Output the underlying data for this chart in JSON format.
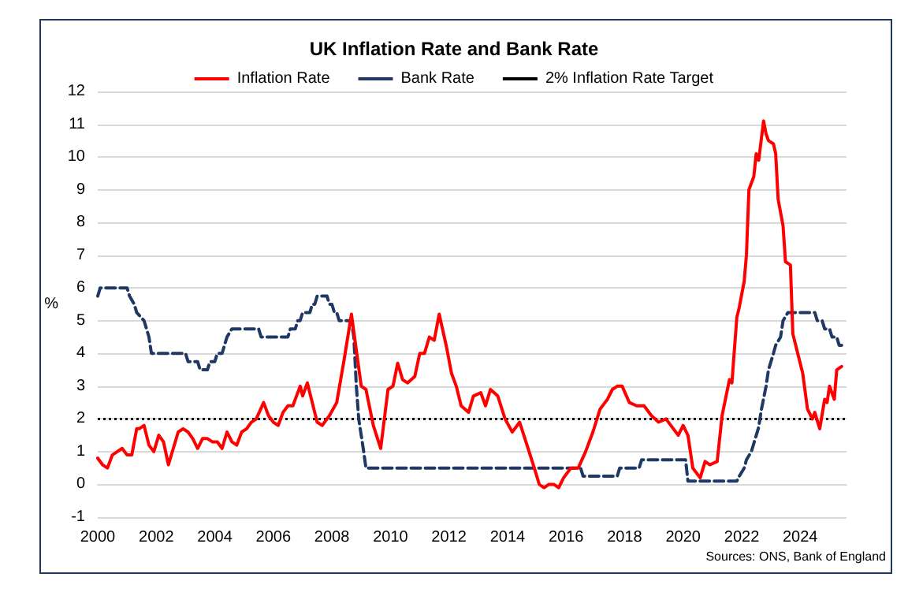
{
  "chart_data": {
    "type": "line",
    "title": "UK Inflation Rate and Bank Rate",
    "ylabel": "%",
    "annotations": [
      "Sources: ONS, Bank of England"
    ],
    "xlim": [
      "2000-01",
      "2025-08"
    ],
    "xticks": [
      "2000",
      "2002",
      "2004",
      "2006",
      "2008",
      "2010",
      "2012",
      "2014",
      "2016",
      "2018",
      "2020",
      "2022",
      "2024"
    ],
    "ylim": [
      -1,
      12
    ],
    "yticks": [
      -1,
      0,
      1,
      2,
      3,
      4,
      5,
      6,
      7,
      8,
      9,
      10,
      11,
      12
    ],
    "grid": "y",
    "legend": "top",
    "marker": "none",
    "ref_lines": [
      {
        "axis": "y",
        "value": 2,
        "label": "2% Inflation Rate Target",
        "color": "#000000",
        "line_style": "dotted"
      }
    ],
    "series": [
      {
        "name": "Inflation Rate",
        "color": "#ff0000",
        "line_style": "solid",
        "x": [
          "2000-01",
          "2000-03",
          "2000-05",
          "2000-07",
          "2000-09",
          "2000-11",
          "2001-01",
          "2001-03",
          "2001-05",
          "2001-06",
          "2001-08",
          "2001-10",
          "2001-12",
          "2002-02",
          "2002-04",
          "2002-06",
          "2002-08",
          "2002-10",
          "2002-12",
          "2003-02",
          "2003-04",
          "2003-06",
          "2003-08",
          "2003-10",
          "2003-12",
          "2004-02",
          "2004-04",
          "2004-06",
          "2004-08",
          "2004-10",
          "2004-12",
          "2005-02",
          "2005-04",
          "2005-06",
          "2005-09",
          "2005-11",
          "2006-01",
          "2006-03",
          "2006-05",
          "2006-07",
          "2006-09",
          "2006-12",
          "2007-01",
          "2007-03",
          "2007-05",
          "2007-07",
          "2007-09",
          "2007-12",
          "2008-03",
          "2008-06",
          "2008-09",
          "2008-11",
          "2009-01",
          "2009-03",
          "2009-06",
          "2009-09",
          "2009-12",
          "2010-02",
          "2010-04",
          "2010-06",
          "2010-08",
          "2010-11",
          "2011-01",
          "2011-03",
          "2011-05",
          "2011-07",
          "2011-09",
          "2011-12",
          "2012-02",
          "2012-04",
          "2012-06",
          "2012-09",
          "2012-11",
          "2013-02",
          "2013-04",
          "2013-06",
          "2013-09",
          "2013-12",
          "2014-03",
          "2014-06",
          "2014-09",
          "2014-12",
          "2015-02",
          "2015-04",
          "2015-06",
          "2015-08",
          "2015-10",
          "2015-12",
          "2016-03",
          "2016-06",
          "2016-09",
          "2016-12",
          "2017-03",
          "2017-06",
          "2017-08",
          "2017-10",
          "2017-12",
          "2018-03",
          "2018-06",
          "2018-09",
          "2018-12",
          "2019-03",
          "2019-06",
          "2019-09",
          "2019-11",
          "2020-01",
          "2020-03",
          "2020-05",
          "2020-08",
          "2020-10",
          "2020-12",
          "2021-03",
          "2021-05",
          "2021-08",
          "2021-09",
          "2021-11",
          "2021-12",
          "2022-02",
          "2022-03",
          "2022-04",
          "2022-06",
          "2022-07",
          "2022-08",
          "2022-10",
          "2022-11",
          "2022-12",
          "2023-02",
          "2023-03",
          "2023-04",
          "2023-06",
          "2023-07",
          "2023-09",
          "2023-10",
          "2023-12",
          "2024-02",
          "2024-04",
          "2024-06",
          "2024-07",
          "2024-09",
          "2024-11",
          "2024-12",
          "2025-01",
          "2025-03",
          "2025-04",
          "2025-06"
        ],
        "values": [
          0.8,
          0.6,
          0.5,
          0.9,
          1.0,
          1.1,
          0.9,
          0.9,
          1.7,
          1.7,
          1.8,
          1.2,
          1.0,
          1.5,
          1.3,
          0.6,
          1.1,
          1.6,
          1.7,
          1.6,
          1.4,
          1.1,
          1.4,
          1.4,
          1.3,
          1.3,
          1.1,
          1.6,
          1.3,
          1.2,
          1.6,
          1.7,
          1.9,
          2.0,
          2.5,
          2.1,
          1.9,
          1.8,
          2.2,
          2.4,
          2.4,
          3.0,
          2.7,
          3.1,
          2.5,
          1.9,
          1.8,
          2.1,
          2.5,
          3.8,
          5.2,
          4.1,
          3.0,
          2.9,
          1.8,
          1.1,
          2.9,
          3.0,
          3.7,
          3.2,
          3.1,
          3.3,
          4.0,
          4.0,
          4.5,
          4.4,
          5.2,
          4.2,
          3.4,
          3.0,
          2.4,
          2.2,
          2.7,
          2.8,
          2.4,
          2.9,
          2.7,
          2.0,
          1.6,
          1.9,
          1.2,
          0.5,
          0.0,
          -0.1,
          0.0,
          0.0,
          -0.1,
          0.2,
          0.5,
          0.5,
          1.0,
          1.6,
          2.3,
          2.6,
          2.9,
          3.0,
          3.0,
          2.5,
          2.4,
          2.4,
          2.1,
          1.9,
          2.0,
          1.7,
          1.5,
          1.8,
          1.5,
          0.5,
          0.2,
          0.7,
          0.6,
          0.7,
          2.1,
          3.2,
          3.1,
          5.1,
          5.4,
          6.2,
          7.0,
          9.0,
          9.4,
          10.1,
          9.9,
          11.1,
          10.7,
          10.5,
          10.4,
          10.1,
          8.7,
          7.9,
          6.8,
          6.7,
          4.6,
          4.0,
          3.4,
          2.3,
          2.0,
          2.2,
          1.7,
          2.6,
          2.5,
          3.0,
          2.6,
          3.5,
          3.6
        ]
      },
      {
        "name": "Bank Rate",
        "color": "#1f3864",
        "line_style": "dashed",
        "x": [
          "2000-01",
          "2000-02",
          "2001-01",
          "2001-02",
          "2001-04",
          "2001-05",
          "2001-08",
          "2001-09",
          "2001-10",
          "2001-11",
          "2003-01",
          "2003-02",
          "2003-06",
          "2003-07",
          "2003-10",
          "2003-11",
          "2004-01",
          "2004-02",
          "2004-04",
          "2004-05",
          "2004-06",
          "2004-08",
          "2005-07",
          "2005-08",
          "2006-07",
          "2006-08",
          "2006-10",
          "2006-11",
          "2006-12",
          "2007-01",
          "2007-04",
          "2007-05",
          "2007-06",
          "2007-07",
          "2007-11",
          "2007-12",
          "2008-01",
          "2008-02",
          "2008-03",
          "2008-04",
          "2008-09",
          "2008-10",
          "2008-11",
          "2008-12",
          "2009-01",
          "2009-02",
          "2009-03",
          "2016-07",
          "2016-08",
          "2017-10",
          "2017-11",
          "2018-07",
          "2018-08",
          "2020-02",
          "2020-03",
          "2021-11",
          "2021-12",
          "2022-02",
          "2022-03",
          "2022-05",
          "2022-06",
          "2022-08",
          "2022-09",
          "2022-11",
          "2022-12",
          "2023-02",
          "2023-03",
          "2023-05",
          "2023-06",
          "2023-08",
          "2024-07",
          "2024-08",
          "2024-10",
          "2024-11",
          "2025-01",
          "2025-02",
          "2025-04",
          "2025-05",
          "2025-06"
        ],
        "values": [
          5.75,
          6.0,
          6.0,
          5.75,
          5.5,
          5.25,
          5.0,
          4.75,
          4.5,
          4.0,
          4.0,
          3.75,
          3.75,
          3.5,
          3.5,
          3.75,
          3.75,
          4.0,
          4.0,
          4.25,
          4.5,
          4.75,
          4.75,
          4.5,
          4.5,
          4.75,
          4.75,
          5.0,
          5.0,
          5.25,
          5.25,
          5.5,
          5.5,
          5.75,
          5.75,
          5.5,
          5.5,
          5.25,
          5.25,
          5.0,
          5.0,
          4.5,
          3.0,
          2.0,
          1.5,
          1.0,
          0.5,
          0.5,
          0.25,
          0.25,
          0.5,
          0.5,
          0.75,
          0.75,
          0.1,
          0.1,
          0.25,
          0.5,
          0.75,
          1.0,
          1.25,
          1.75,
          2.25,
          3.0,
          3.5,
          4.0,
          4.25,
          4.5,
          5.0,
          5.25,
          5.25,
          5.0,
          5.0,
          4.75,
          4.75,
          4.5,
          4.5,
          4.25,
          4.25
        ]
      }
    ]
  }
}
